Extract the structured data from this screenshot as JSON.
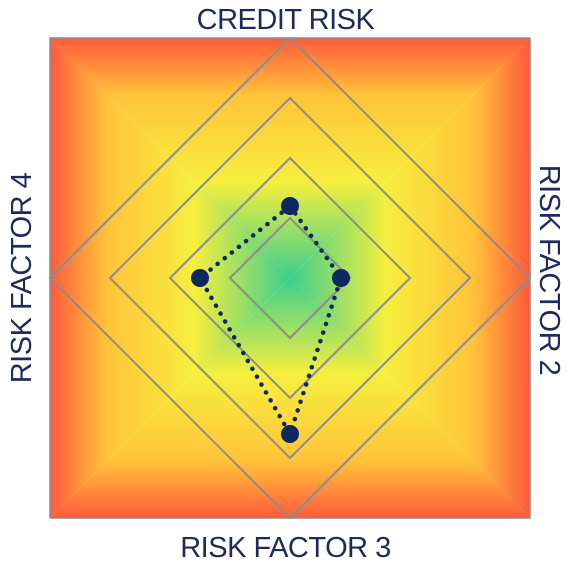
{
  "labels": {
    "top": "CREDIT RISK",
    "right": "RISK FACTOR 2",
    "bottom": "RISK FACTOR 3",
    "left": "RISK FACTOR 4"
  },
  "colors": {
    "text": "#1f2a5c",
    "grid": "#8c8c8c",
    "marker": "#0d2760",
    "heat_center": "#3ccf8e",
    "heat_mid": "#f5f542",
    "heat_edge": "#ff5a3c"
  },
  "rings": 4,
  "points": [
    {
      "axis": "top",
      "value": 1.2
    },
    {
      "axis": "right",
      "value": 0.85
    },
    {
      "axis": "bottom",
      "value": 2.6
    },
    {
      "axis": "left",
      "value": 1.5
    }
  ]
}
